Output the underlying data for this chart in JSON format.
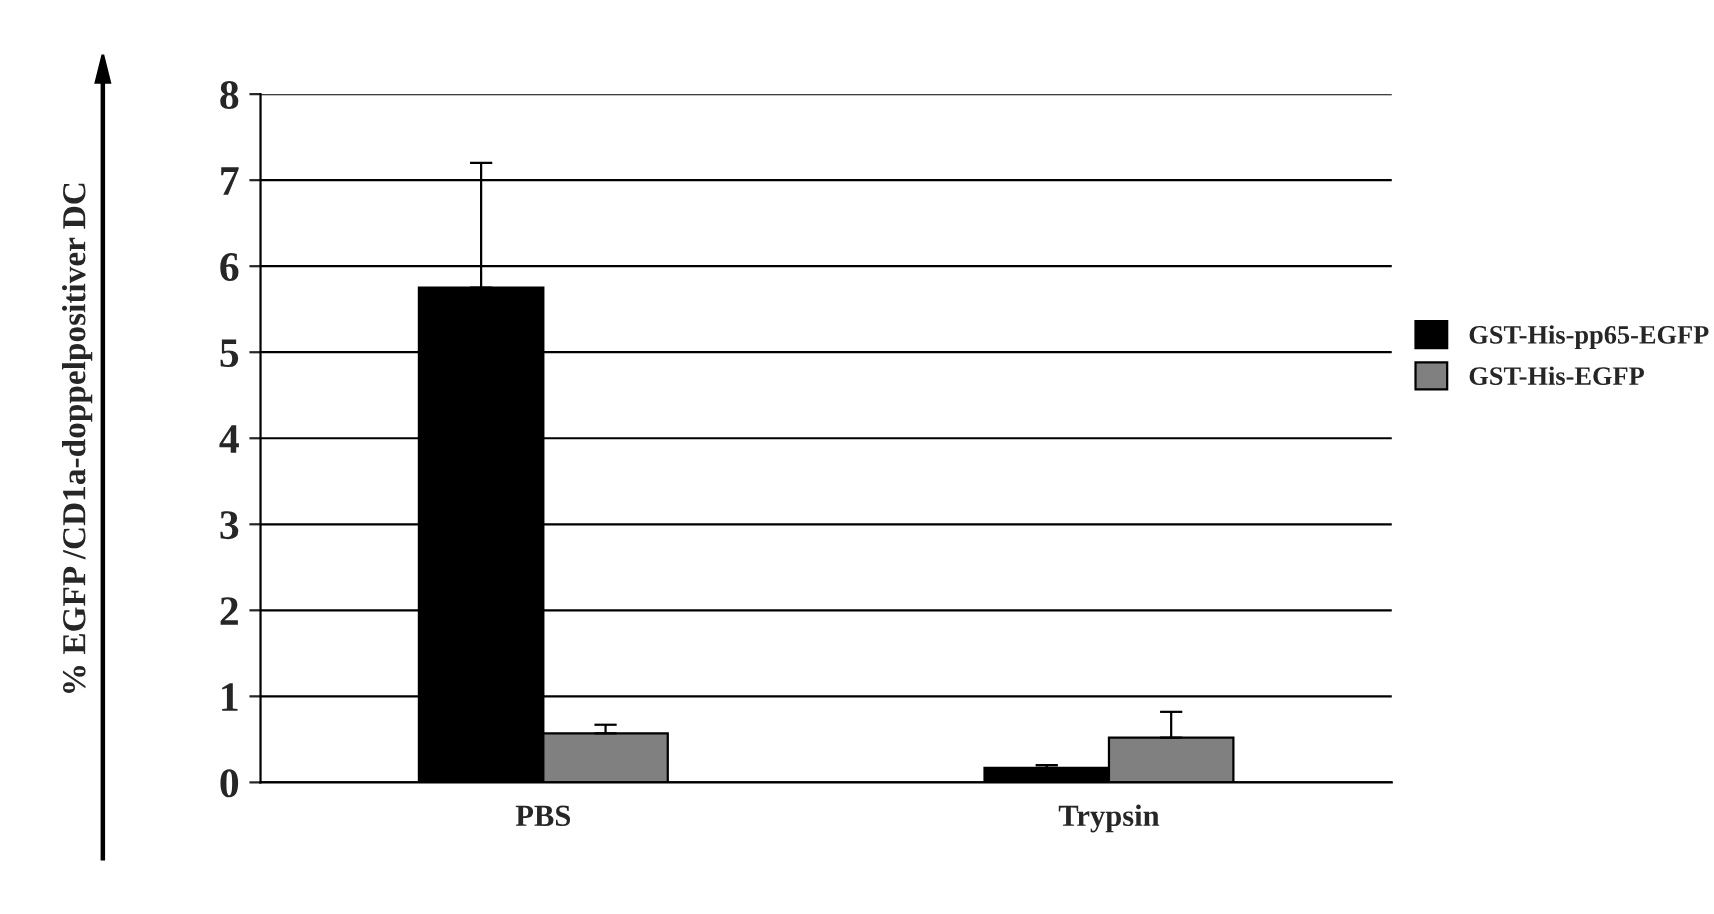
{
  "chart_data": {
    "type": "bar",
    "ylabel": "% EGFP /CD1a-doppelpositiver DC",
    "categories": [
      "PBS",
      "Trypsin"
    ],
    "series": [
      {
        "name": "GST-His-pp65-EGFP",
        "color": "#000000",
        "values": [
          5.75,
          0.17
        ],
        "errors": [
          [
            5.75,
            7.2
          ],
          [
            0.17,
            0.2
          ]
        ]
      },
      {
        "name": "GST-His-EGFP",
        "color": "#808080",
        "values": [
          0.57,
          0.52
        ],
        "errors": [
          [
            0.57,
            0.67
          ],
          [
            0.52,
            0.82
          ]
        ]
      }
    ],
    "ylim": [
      0,
      8
    ],
    "yticks": [
      0,
      1,
      2,
      3,
      4,
      5,
      6,
      7,
      8
    ],
    "grid": "y",
    "legend": "right"
  }
}
